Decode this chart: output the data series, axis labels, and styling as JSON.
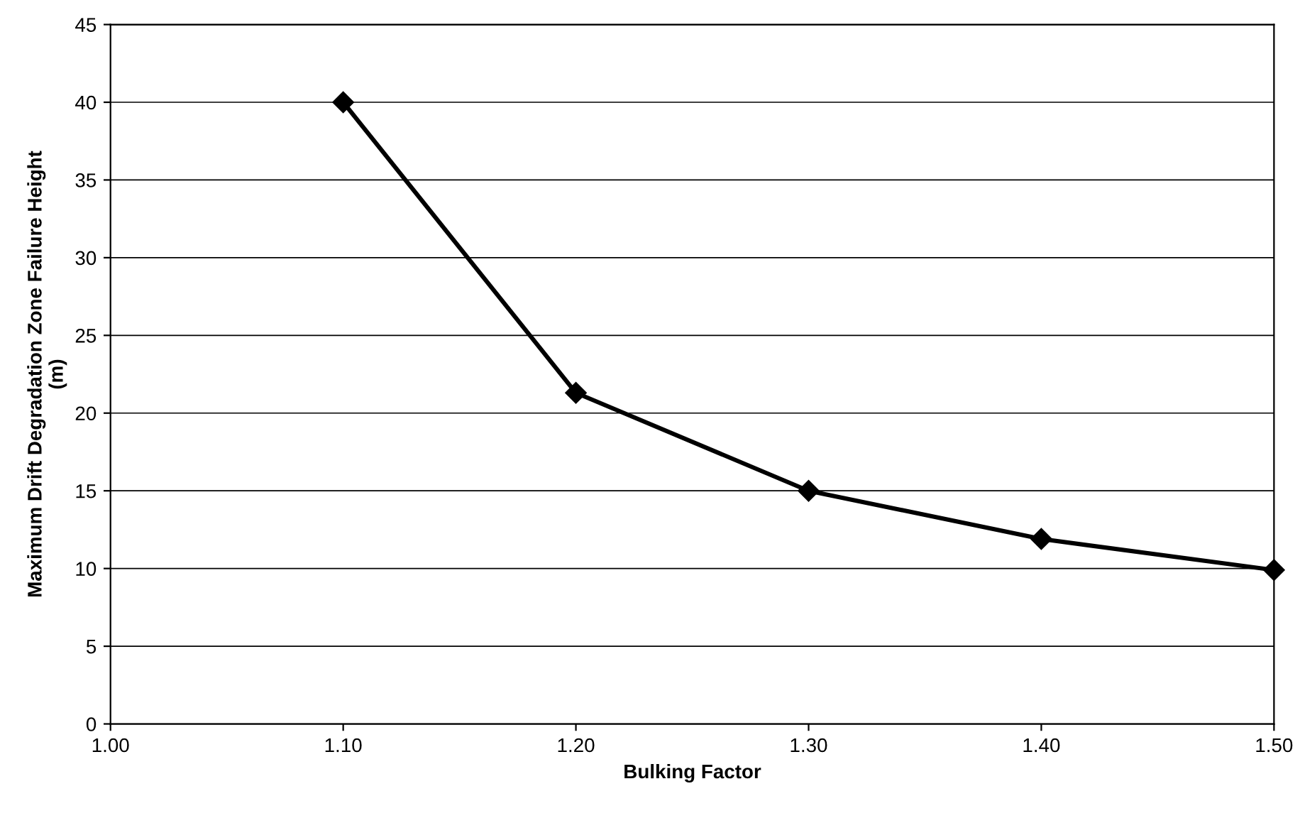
{
  "chart_data": {
    "type": "line",
    "xlabel": "Bulking Factor",
    "ylabel": "Maximum Drift Degradation Zone Failure Height\n(m)",
    "x": [
      1.1,
      1.2,
      1.3,
      1.4,
      1.5
    ],
    "series": [
      {
        "color": "#000000",
        "values": [
          40,
          21.3,
          15,
          11.9,
          9.9
        ]
      }
    ],
    "marker": "diamond",
    "line_style": "solid",
    "grid": "y",
    "xlim": [
      1.0,
      1.5
    ],
    "xticks": [
      {
        "value": 1.0,
        "label": "1.00"
      },
      {
        "value": 1.1,
        "label": "1.10"
      },
      {
        "value": 1.2,
        "label": "1.20"
      },
      {
        "value": 1.3,
        "label": "1.30"
      },
      {
        "value": 1.4,
        "label": "1.40"
      },
      {
        "value": 1.5,
        "label": "1.50"
      }
    ],
    "ylim": [
      0,
      45
    ],
    "yticks": [
      0,
      5,
      10,
      15,
      20,
      25,
      30,
      35,
      40,
      45
    ]
  }
}
